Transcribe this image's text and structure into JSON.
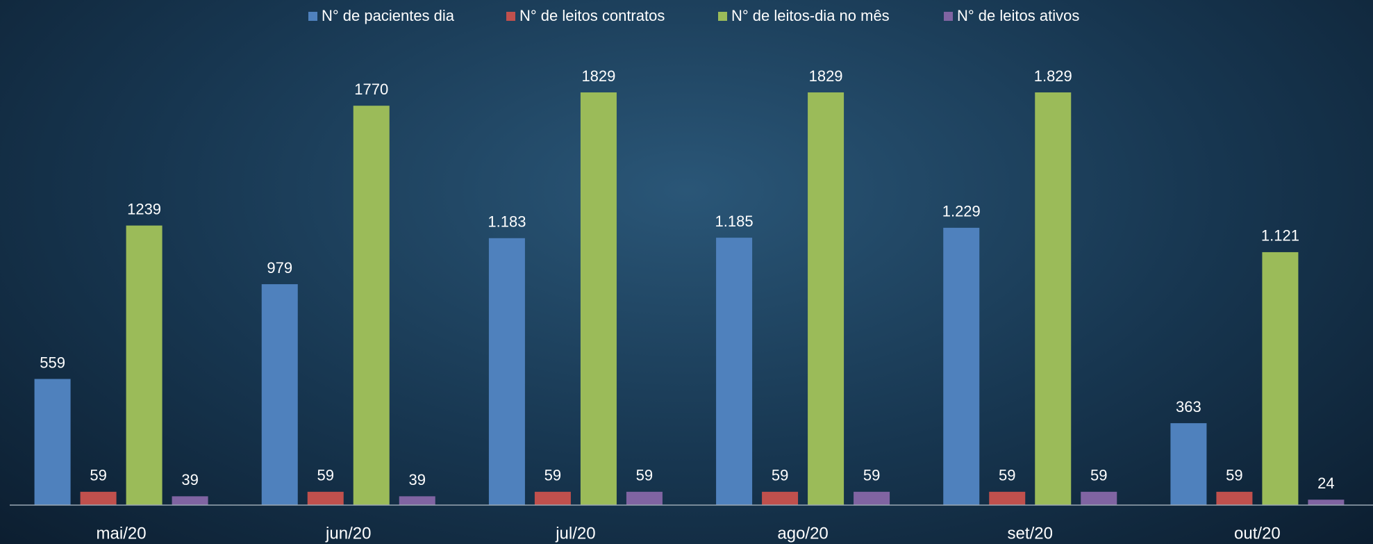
{
  "chart_data": {
    "type": "bar",
    "categories": [
      "mai/20",
      "jun/20",
      "jul/20",
      "ago/20",
      "set/20",
      "out/20"
    ],
    "series": [
      {
        "name": "N° de pacientes dia",
        "color": "#4f81bd",
        "values": [
          559,
          979,
          1183,
          1185,
          1229,
          363
        ],
        "value_labels": [
          "559",
          "979",
          "1.183",
          "1.185",
          "1.229",
          "363"
        ]
      },
      {
        "name": "N° de leitos contratos",
        "color": "#c0504d",
        "values": [
          59,
          59,
          59,
          59,
          59,
          59
        ]
      },
      {
        "name": "N° de leitos-dia no mês",
        "color": "#9bbb59",
        "values": [
          1239,
          1770,
          1829,
          1829,
          1829,
          1121
        ],
        "value_labels": [
          "1239",
          "1770",
          "1829",
          "1829",
          "1.829",
          "1.121"
        ]
      },
      {
        "name": "N° de leitos ativos",
        "color": "#8064a2",
        "values": [
          39,
          39,
          59,
          59,
          59,
          24
        ]
      }
    ],
    "legend": "top"
  }
}
